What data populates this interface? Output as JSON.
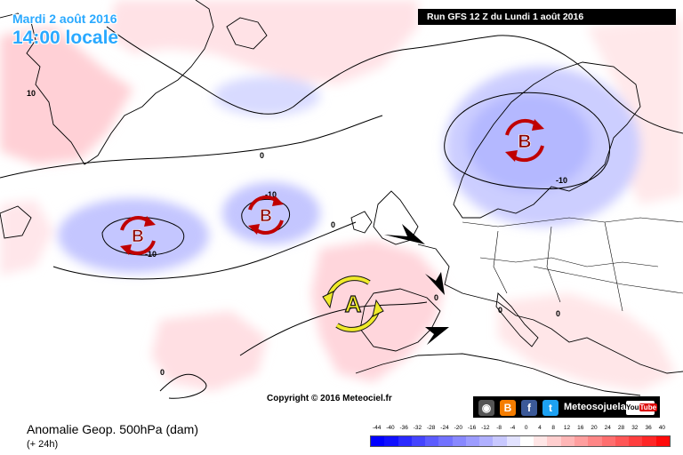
{
  "header": {
    "date": "Mardi 2 août 2016",
    "time": "14:00 locale",
    "run": "Run GFS 12 Z du Lundi 1 août 2016"
  },
  "map": {
    "contour_labels": [
      "10",
      "0",
      "0",
      "-10",
      "-10",
      "-10",
      "0",
      "0",
      "0",
      "0"
    ],
    "systems": [
      {
        "type": "low",
        "label": "B"
      },
      {
        "type": "low",
        "label": "B"
      },
      {
        "type": "low",
        "label": "B"
      },
      {
        "type": "high",
        "label": "A"
      }
    ]
  },
  "copyright": "Copyright © 2016 Meteociel.fr",
  "social": {
    "text": "Meteosojuela",
    "icons": [
      "instagram-icon",
      "blogger-icon",
      "facebook-icon",
      "twitter-icon",
      "youtube-icon"
    ],
    "youtube_a": "You",
    "youtube_b": "Tube"
  },
  "legend": {
    "title": "Anomalie Geop. 500hPa (dam)",
    "subtitle": "(+ 24h)",
    "ticks": [
      "-44",
      "-40",
      "-36",
      "-32",
      "-28",
      "-24",
      "-20",
      "-16",
      "-12",
      "-8",
      "-4",
      "0",
      "4",
      "8",
      "12",
      "16",
      "20",
      "24",
      "28",
      "32",
      "36",
      "40"
    ],
    "colors": [
      "#0000ff",
      "#1010ff",
      "#2a2aff",
      "#4444ff",
      "#5c5cff",
      "#7272ff",
      "#8888ff",
      "#9c9cff",
      "#b0b0ff",
      "#c8c8ff",
      "#e2e2ff",
      "#ffffff",
      "#ffe6e6",
      "#ffcece",
      "#ffb6b6",
      "#ff9e9e",
      "#ff8686",
      "#ff6e6e",
      "#ff5656",
      "#ff3e3e",
      "#ff2626",
      "#ff0a0a"
    ]
  }
}
